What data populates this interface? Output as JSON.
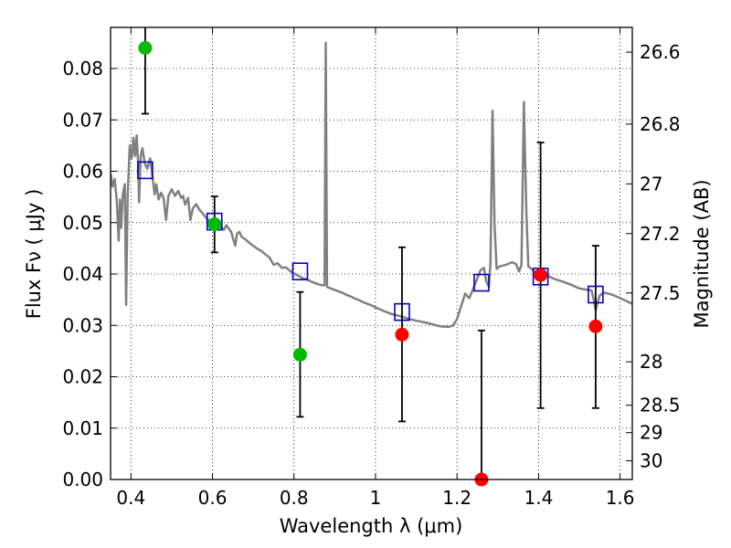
{
  "chart_data": {
    "type": "scatter",
    "title": "",
    "xlabel": "Wavelength  λ (μm)",
    "ylabel": "Flux  Fν  ( μJy )",
    "ylabel_right": "Magnitude (AB)",
    "xlim": [
      0.35,
      1.63
    ],
    "ylim": [
      0.0,
      0.088
    ],
    "grid": true,
    "x_ticks": [
      0.4,
      0.6,
      0.8,
      1.0,
      1.2,
      1.4,
      1.6
    ],
    "x_tick_labels": [
      "0.4",
      "0.6",
      "0.8",
      "1",
      "1.2",
      "1.4",
      "1.6"
    ],
    "y_ticks": [
      0.0,
      0.01,
      0.02,
      0.03,
      0.04,
      0.05,
      0.06,
      0.07,
      0.08
    ],
    "y_tick_labels": [
      "0.00",
      "0.01",
      "0.02",
      "0.03",
      "0.04",
      "0.05",
      "0.06",
      "0.07",
      "0.08"
    ],
    "mag_ticks": [
      26.6,
      26.8,
      27.0,
      27.2,
      27.5,
      28.0,
      28.5,
      29.0,
      30.0
    ],
    "mag_tick_labels": [
      "26.6",
      "26.8",
      "27",
      "27.2",
      "27.5",
      "28",
      "28.5",
      "29",
      "30"
    ],
    "model_sed": {
      "name": "model spectrum",
      "color": "#808080",
      "points": [
        [
          0.35,
          0.0595
        ],
        [
          0.355,
          0.057
        ],
        [
          0.36,
          0.0585
        ],
        [
          0.365,
          0.0545
        ],
        [
          0.37,
          0.0465
        ],
        [
          0.373,
          0.0545
        ],
        [
          0.376,
          0.049
        ],
        [
          0.38,
          0.0555
        ],
        [
          0.385,
          0.0575
        ],
        [
          0.388,
          0.034
        ],
        [
          0.392,
          0.055
        ],
        [
          0.397,
          0.065
        ],
        [
          0.402,
          0.0625
        ],
        [
          0.406,
          0.0665
        ],
        [
          0.41,
          0.063
        ],
        [
          0.414,
          0.067
        ],
        [
          0.418,
          0.061
        ],
        [
          0.42,
          0.054
        ],
        [
          0.424,
          0.063
        ],
        [
          0.428,
          0.0645
        ],
        [
          0.434,
          0.0615
        ],
        [
          0.44,
          0.0605
        ],
        [
          0.447,
          0.0625
        ],
        [
          0.452,
          0.0595
        ],
        [
          0.458,
          0.0555
        ],
        [
          0.462,
          0.0575
        ],
        [
          0.468,
          0.0545
        ],
        [
          0.474,
          0.0558
        ],
        [
          0.48,
          0.0548
        ],
        [
          0.486,
          0.0505
        ],
        [
          0.492,
          0.0552
        ],
        [
          0.5,
          0.0565
        ],
        [
          0.508,
          0.0552
        ],
        [
          0.516,
          0.0562
        ],
        [
          0.523,
          0.0548
        ],
        [
          0.528,
          0.0552
        ],
        [
          0.533,
          0.0535
        ],
        [
          0.54,
          0.0548
        ],
        [
          0.546,
          0.0505
        ],
        [
          0.552,
          0.0528
        ],
        [
          0.56,
          0.0536
        ],
        [
          0.568,
          0.0525
        ],
        [
          0.576,
          0.0518
        ],
        [
          0.586,
          0.0508
        ],
        [
          0.594,
          0.0503
        ],
        [
          0.6,
          0.0502
        ],
        [
          0.608,
          0.0506
        ],
        [
          0.615,
          0.0495
        ],
        [
          0.62,
          0.0492
        ],
        [
          0.628,
          0.0486
        ],
        [
          0.634,
          0.0495
        ],
        [
          0.64,
          0.0488
        ],
        [
          0.646,
          0.0482
        ],
        [
          0.652,
          0.0465
        ],
        [
          0.656,
          0.0455
        ],
        [
          0.66,
          0.0478
        ],
        [
          0.666,
          0.0482
        ],
        [
          0.672,
          0.0472
        ],
        [
          0.68,
          0.0468
        ],
        [
          0.69,
          0.0461
        ],
        [
          0.7,
          0.0455
        ],
        [
          0.71,
          0.0449
        ],
        [
          0.72,
          0.0445
        ],
        [
          0.73,
          0.0438
        ],
        [
          0.74,
          0.0432
        ],
        [
          0.75,
          0.0418
        ],
        [
          0.76,
          0.0421
        ],
        [
          0.77,
          0.0412
        ],
        [
          0.78,
          0.0413
        ],
        [
          0.79,
          0.0406
        ],
        [
          0.8,
          0.0401
        ],
        [
          0.81,
          0.0397
        ],
        [
          0.82,
          0.0392
        ],
        [
          0.83,
          0.039
        ],
        [
          0.84,
          0.0386
        ],
        [
          0.85,
          0.0383
        ],
        [
          0.86,
          0.038
        ],
        [
          0.87,
          0.0378
        ],
        [
          0.875,
          0.0378
        ],
        [
          0.878,
          0.085
        ],
        [
          0.881,
          0.0375
        ],
        [
          0.89,
          0.0372
        ],
        [
          0.9,
          0.0369
        ],
        [
          0.91,
          0.0366
        ],
        [
          0.92,
          0.0363
        ],
        [
          0.93,
          0.0359
        ],
        [
          0.94,
          0.0356
        ],
        [
          0.95,
          0.0352
        ],
        [
          0.96,
          0.0349
        ],
        [
          0.97,
          0.0345
        ],
        [
          0.98,
          0.0342
        ],
        [
          0.99,
          0.0339
        ],
        [
          1.0,
          0.0335
        ],
        [
          1.02,
          0.0328
        ],
        [
          1.04,
          0.0322
        ],
        [
          1.06,
          0.0318
        ],
        [
          1.08,
          0.0313
        ],
        [
          1.1,
          0.0309
        ],
        [
          1.12,
          0.0306
        ],
        [
          1.14,
          0.0302
        ],
        [
          1.16,
          0.0298
        ],
        [
          1.18,
          0.0297
        ],
        [
          1.19,
          0.03
        ],
        [
          1.2,
          0.0312
        ],
        [
          1.21,
          0.0337
        ],
        [
          1.22,
          0.0362
        ],
        [
          1.23,
          0.0353
        ],
        [
          1.24,
          0.0372
        ],
        [
          1.25,
          0.0392
        ],
        [
          1.258,
          0.0408
        ],
        [
          1.266,
          0.0412
        ],
        [
          1.272,
          0.0385
        ],
        [
          1.278,
          0.0375
        ],
        [
          1.282,
          0.0422
        ],
        [
          1.287,
          0.0718
        ],
        [
          1.292,
          0.0498
        ],
        [
          1.297,
          0.041
        ],
        [
          1.305,
          0.0415
        ],
        [
          1.32,
          0.0418
        ],
        [
          1.335,
          0.0423
        ],
        [
          1.345,
          0.0419
        ],
        [
          1.352,
          0.0405
        ],
        [
          1.358,
          0.0418
        ],
        [
          1.364,
          0.0735
        ],
        [
          1.37,
          0.0522
        ],
        [
          1.375,
          0.0415
        ],
        [
          1.39,
          0.0405
        ],
        [
          1.4,
          0.0402
        ],
        [
          1.42,
          0.0397
        ],
        [
          1.44,
          0.039
        ],
        [
          1.46,
          0.0385
        ],
        [
          1.48,
          0.0379
        ],
        [
          1.5,
          0.0372
        ],
        [
          1.52,
          0.0369
        ],
        [
          1.53,
          0.0368
        ],
        [
          1.535,
          0.0352
        ],
        [
          1.54,
          0.033
        ],
        [
          1.545,
          0.0345
        ],
        [
          1.55,
          0.0358
        ],
        [
          1.56,
          0.0364
        ],
        [
          1.58,
          0.036
        ],
        [
          1.6,
          0.0353
        ],
        [
          1.63,
          0.0342
        ]
      ]
    },
    "model_bandpass": {
      "name": "model band flux",
      "color": "#0000cc",
      "x": [
        0.435,
        0.605,
        0.815,
        1.065,
        1.26,
        1.405,
        1.54
      ],
      "y": [
        0.0602,
        0.0502,
        0.0405,
        0.0326,
        0.0383,
        0.0395,
        0.036
      ]
    },
    "observed_optical": {
      "name": "observed (optical)",
      "color": "#00bb00",
      "x": [
        0.435,
        0.605,
        0.815
      ],
      "y": [
        0.084,
        0.0497,
        0.0243
      ],
      "yerr_low": [
        0.0712,
        0.0442,
        0.0122
      ],
      "yerr_high": [
        0.092,
        0.0551,
        0.0365
      ]
    },
    "observed_nir": {
      "name": "observed (near-IR)",
      "color": "#ff0000",
      "x": [
        1.065,
        1.26,
        1.405,
        1.54
      ],
      "y": [
        0.0282,
        0.0,
        0.0398,
        0.0298
      ],
      "yerr_low": [
        0.0113,
        0.0,
        0.0139,
        0.0139
      ],
      "yerr_high": [
        0.0452,
        0.029,
        0.0656,
        0.0455
      ]
    }
  }
}
